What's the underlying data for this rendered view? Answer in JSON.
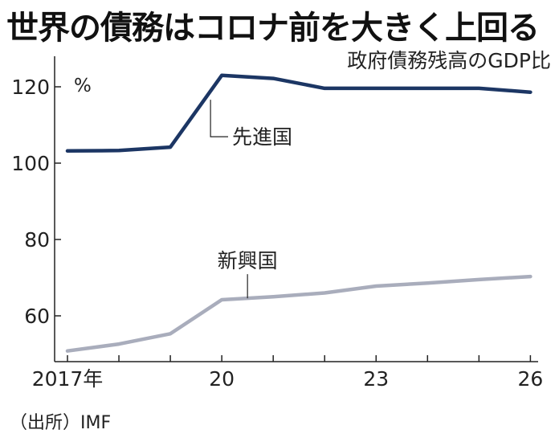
{
  "title": "世界の債務はコロナ前を大きく上回る",
  "subtitle": "政府債務残高のGDP比",
  "source": "（出所）IMF",
  "chart_data": {
    "type": "line",
    "title": "世界の債務はコロナ前を大きく上回る",
    "subtitle": "政府債務残高のGDP比",
    "unit": "%",
    "x": [
      2017,
      2018,
      2019,
      2020,
      2021,
      2022,
      2023,
      2024,
      2025,
      2026
    ],
    "x_tick_values": [
      2017,
      2020,
      2023,
      2026
    ],
    "x_tick_labels": [
      "2017年",
      "20",
      "23",
      "26"
    ],
    "y_ticks": [
      60,
      80,
      100,
      120
    ],
    "ylim": [
      48,
      128
    ],
    "xlim": [
      2016.75,
      2026.15
    ],
    "grid": false,
    "series": [
      {
        "name": "先進国",
        "color": "#1c3664",
        "values": [
          103.2,
          103.3,
          104.2,
          123.0,
          122.2,
          119.6,
          119.6,
          119.6,
          119.6,
          118.6
        ]
      },
      {
        "name": "新興国",
        "color": "#a9adbc",
        "values": [
          50.8,
          52.6,
          55.3,
          64.2,
          65.0,
          66.0,
          67.8,
          68.6,
          69.5,
          70.3
        ]
      }
    ]
  }
}
